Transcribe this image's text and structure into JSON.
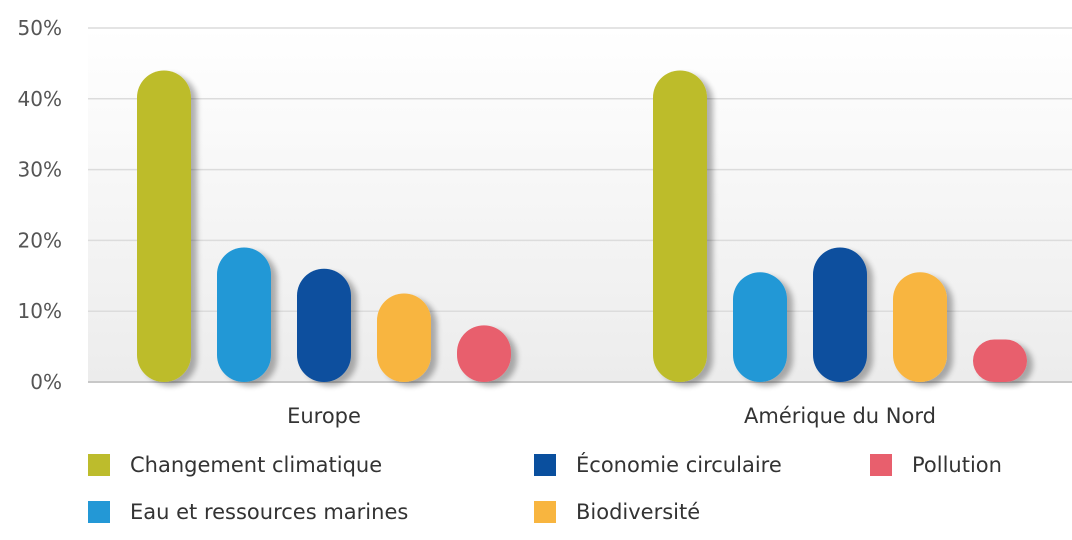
{
  "chart_data": {
    "type": "bar",
    "categories": [
      "Europe",
      "Amérique du Nord"
    ],
    "series": [
      {
        "name": "Changement climatique",
        "color": "#BDBC2C",
        "values": [
          44,
          44
        ]
      },
      {
        "name": "Eau et ressources marines",
        "color": "#2398D6",
        "values": [
          19,
          15.5
        ]
      },
      {
        "name": "Économie circulaire",
        "color": "#0A4F9E",
        "values": [
          16,
          19
        ]
      },
      {
        "name": "Biodiversité",
        "color": "#F8B53F",
        "values": [
          12.5,
          15.5
        ]
      },
      {
        "name": "Pollution",
        "color": "#E85F6D",
        "values": [
          8,
          6
        ]
      }
    ],
    "yticks": [
      "0%",
      "10%",
      "20%",
      "30%",
      "40%",
      "50%"
    ],
    "ylim": [
      0,
      50
    ],
    "grid": true,
    "legend": "bottom"
  }
}
